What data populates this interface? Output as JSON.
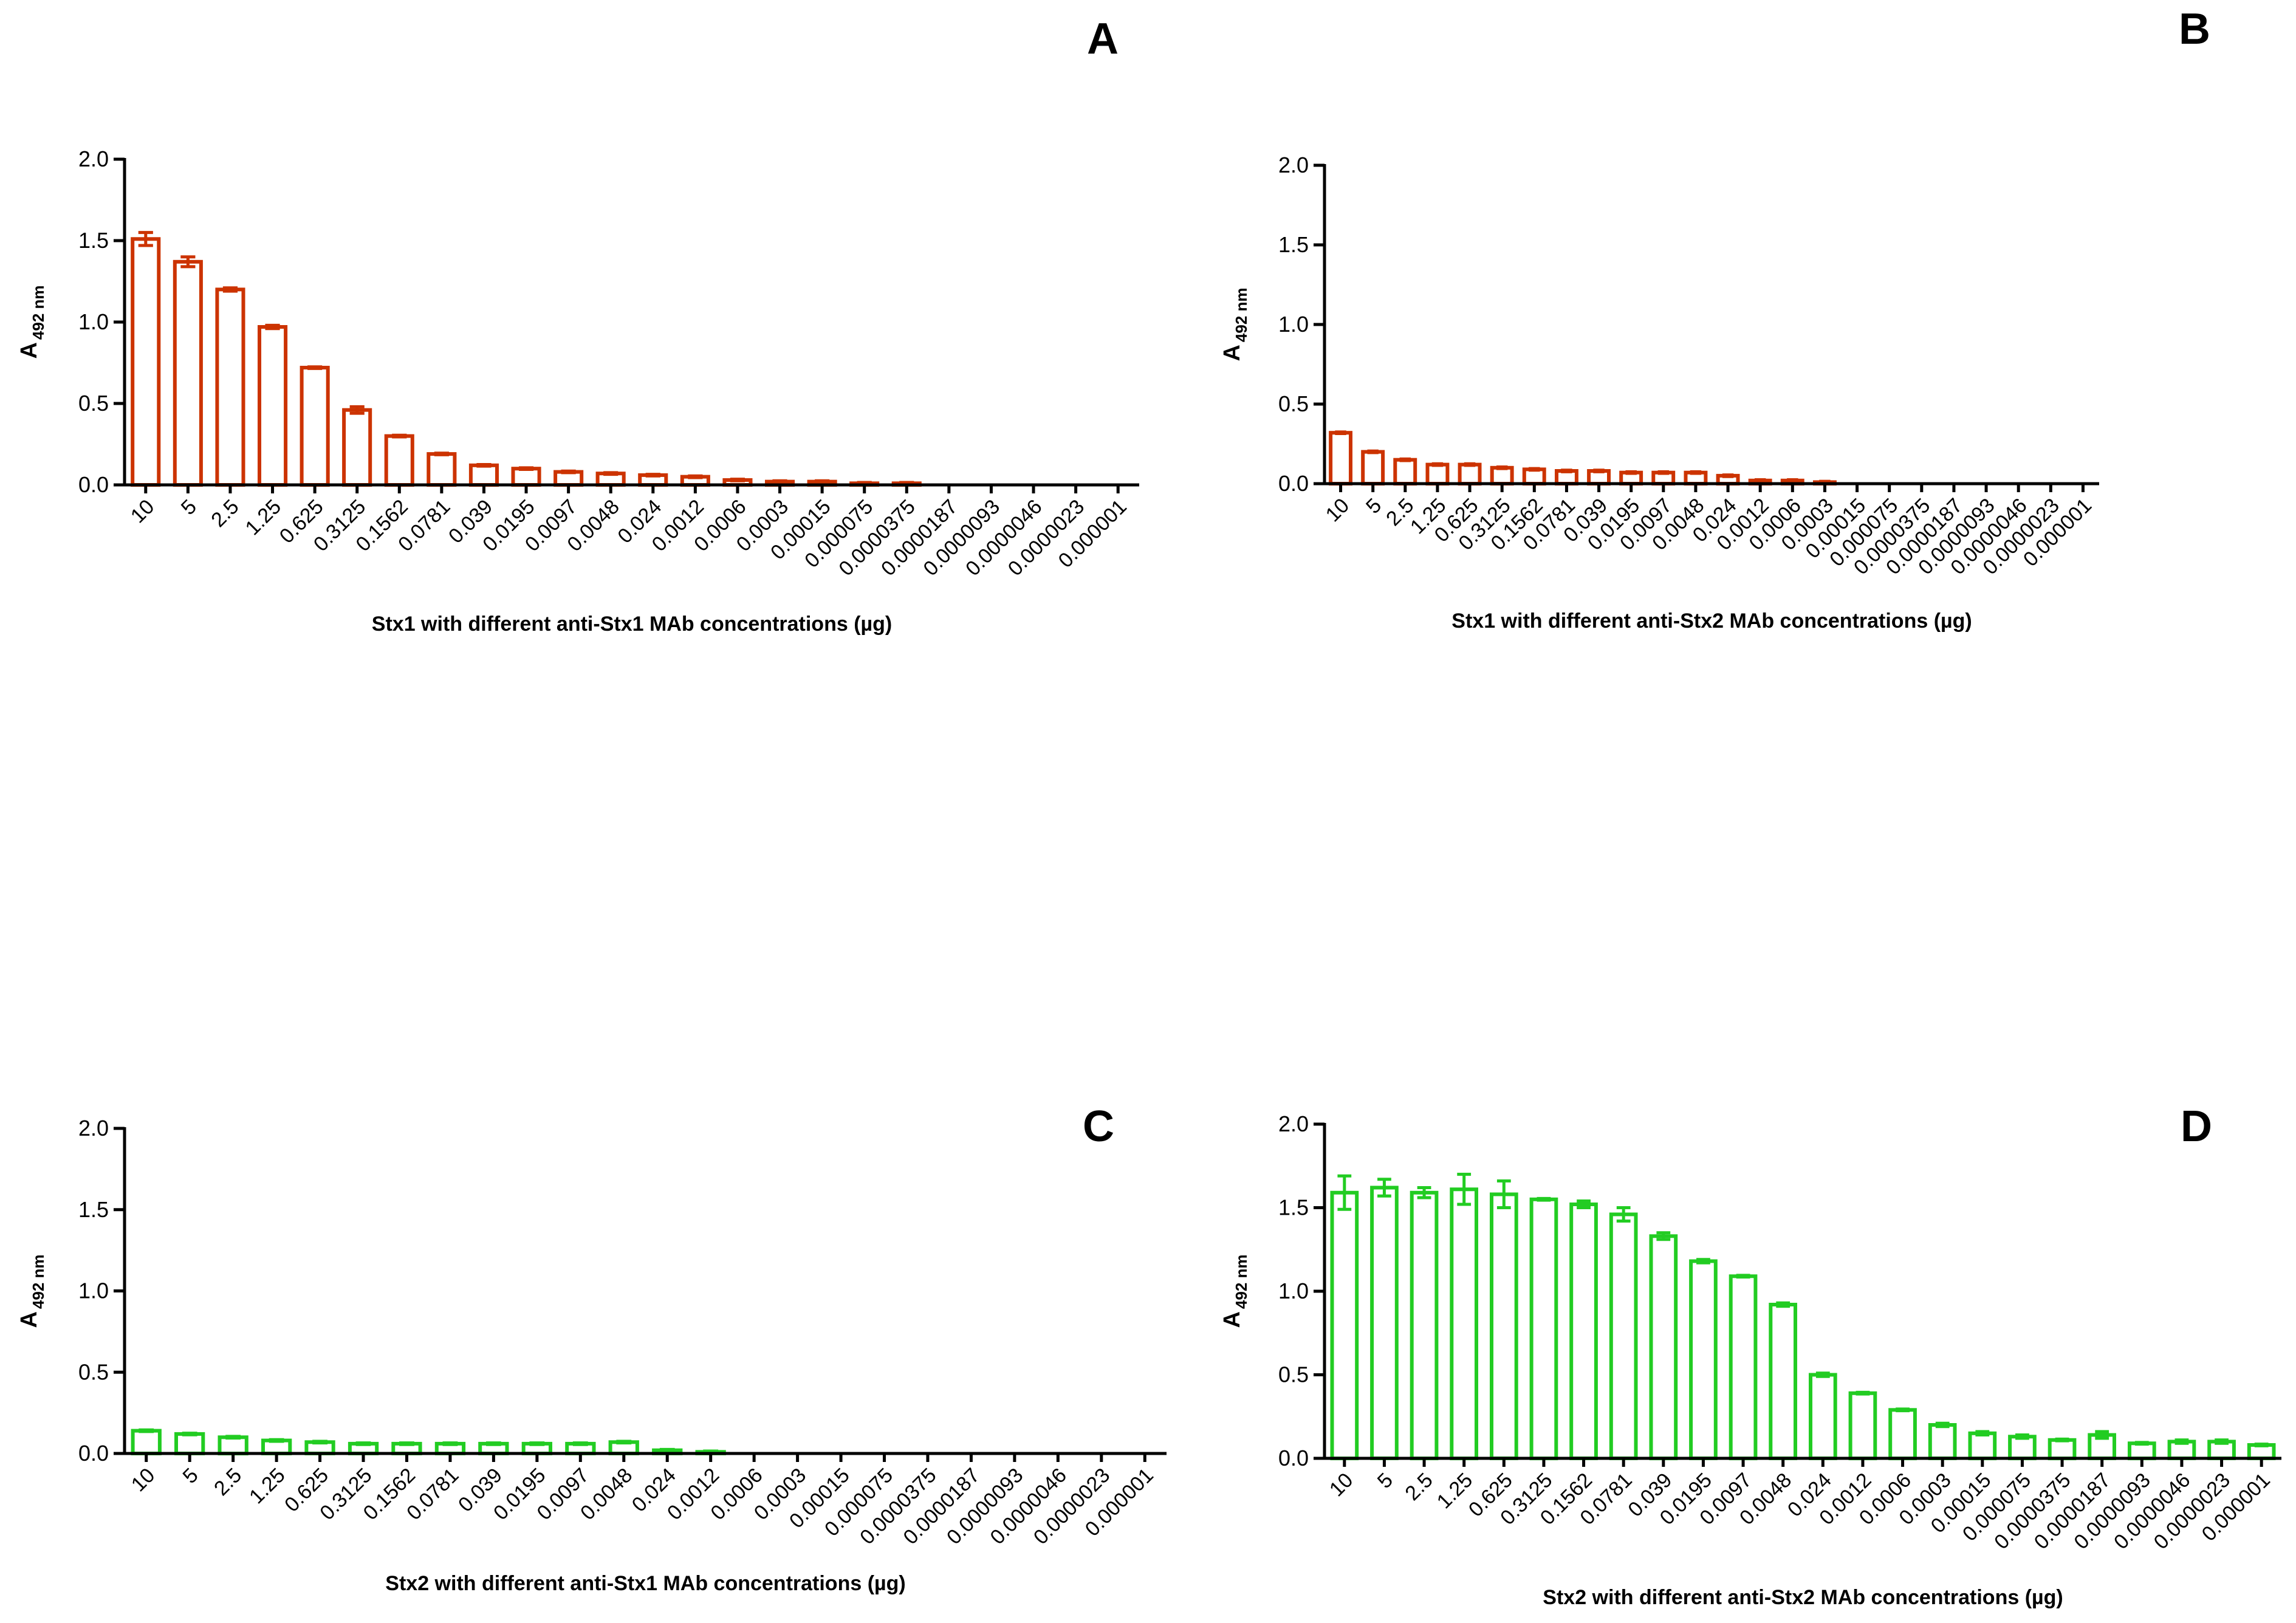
{
  "chart_data": [
    {
      "type": "bar",
      "panel": "A",
      "color": "#cc3300",
      "title": "A",
      "ylabel_main": "A",
      "ylabel_sub": "492 nm",
      "xlabel": "Stx1 with different anti-Stx1 MAb concentrations (µg)",
      "ylim": [
        0,
        2.0
      ],
      "yticks": [
        "0.0",
        "0.5",
        "1.0",
        "1.5",
        "2.0"
      ],
      "categories": [
        "10",
        "5",
        "2.5",
        "1.25",
        "0.625",
        "0.3125",
        "0.1562",
        "0.0781",
        "0.039",
        "0.0195",
        "0.0097",
        "0.0048",
        "0.024",
        "0.0012",
        "0.0006",
        "0.0003",
        "0.00015",
        "0.000075",
        "0.0000375",
        "0.0000187",
        "0.0000093",
        "0.0000046",
        "0.0000023",
        "0.000001"
      ],
      "values": [
        1.51,
        1.37,
        1.2,
        0.97,
        0.72,
        0.46,
        0.3,
        0.19,
        0.12,
        0.1,
        0.08,
        0.07,
        0.06,
        0.05,
        0.03,
        0.02,
        0.02,
        0.01,
        0.01,
        0,
        0,
        0,
        0,
        0
      ],
      "errors": [
        0.04,
        0.03,
        0.01,
        0.01,
        0.005,
        0.02,
        0.005,
        0.005,
        0.005,
        0.005,
        0.005,
        0.005,
        0.005,
        0.005,
        0.005,
        0.005,
        0.005,
        0.005,
        0.005,
        0,
        0,
        0,
        0,
        0
      ],
      "grid": false
    },
    {
      "type": "bar",
      "panel": "B",
      "color": "#cc3300",
      "title": "B",
      "ylabel_main": "A",
      "ylabel_sub": "492 nm",
      "xlabel": "Stx1 with different anti-Stx2 MAb concentrations (µg)",
      "ylim": [
        0,
        2.0
      ],
      "yticks": [
        "0.0",
        "0.5",
        "1.0",
        "1.5",
        "2.0"
      ],
      "categories": [
        "10",
        "5",
        "2.5",
        "1.25",
        "0.625",
        "0.3125",
        "0.1562",
        "0.0781",
        "0.039",
        "0.0195",
        "0.0097",
        "0.0048",
        "0.024",
        "0.0012",
        "0.0006",
        "0.0003",
        "0.00015",
        "0.000075",
        "0.0000375",
        "0.0000187",
        "0.0000093",
        "0.0000046",
        "0.0000023",
        "0.000001"
      ],
      "values": [
        0.32,
        0.2,
        0.15,
        0.12,
        0.12,
        0.1,
        0.09,
        0.08,
        0.08,
        0.07,
        0.07,
        0.07,
        0.05,
        0.02,
        0.02,
        0.01,
        0,
        0,
        0,
        0,
        0,
        0,
        0,
        0
      ],
      "errors": [
        0.005,
        0.005,
        0.005,
        0.005,
        0.005,
        0.005,
        0.005,
        0.005,
        0.005,
        0.005,
        0.005,
        0.005,
        0.005,
        0.005,
        0.005,
        0.005,
        0,
        0,
        0,
        0,
        0,
        0,
        0,
        0
      ],
      "grid": false
    },
    {
      "type": "bar",
      "panel": "C",
      "color": "#22cc22",
      "title": "C",
      "ylabel_main": "A",
      "ylabel_sub": "492 nm",
      "xlabel": "Stx2 with different anti-Stx1 MAb concentrations (µg)",
      "ylim": [
        0,
        2.0
      ],
      "yticks": [
        "0.0",
        "0.5",
        "1.0",
        "1.5",
        "2.0"
      ],
      "categories": [
        "10",
        "5",
        "2.5",
        "1.25",
        "0.625",
        "0.3125",
        "0.1562",
        "0.0781",
        "0.039",
        "0.0195",
        "0.0097",
        "0.0048",
        "0.024",
        "0.0012",
        "0.0006",
        "0.0003",
        "0.00015",
        "0.000075",
        "0.0000375",
        "0.0000187",
        "0.0000093",
        "0.0000046",
        "0.0000023",
        "0.000001"
      ],
      "values": [
        0.14,
        0.12,
        0.1,
        0.08,
        0.07,
        0.06,
        0.06,
        0.06,
        0.06,
        0.06,
        0.06,
        0.07,
        0.02,
        0.01,
        0,
        0,
        0,
        0,
        0,
        0,
        0,
        0,
        0,
        0
      ],
      "errors": [
        0.005,
        0.005,
        0.005,
        0.005,
        0.005,
        0.005,
        0.005,
        0.005,
        0.005,
        0.005,
        0.005,
        0.005,
        0.005,
        0.005,
        0,
        0,
        0,
        0,
        0,
        0,
        0,
        0,
        0,
        0
      ],
      "grid": false
    },
    {
      "type": "bar",
      "panel": "D",
      "color": "#22cc22",
      "title": "D",
      "ylabel_main": "A",
      "ylabel_sub": "492 nm",
      "xlabel": "Stx2 with different anti-Stx2 MAb concentrations (µg)",
      "ylim": [
        0,
        2.0
      ],
      "yticks": [
        "0.0",
        "0.5",
        "1.0",
        "1.5",
        "2.0"
      ],
      "categories": [
        "10",
        "5",
        "2.5",
        "1.25",
        "0.625",
        "0.3125",
        "0.1562",
        "0.0781",
        "0.039",
        "0.0195",
        "0.0097",
        "0.0048",
        "0.024",
        "0.0012",
        "0.0006",
        "0.0003",
        "0.00015",
        "0.000075",
        "0.0000375",
        "0.0000187",
        "0.0000093",
        "0.0000046",
        "0.0000023",
        "0.000001"
      ],
      "values": [
        1.59,
        1.62,
        1.59,
        1.61,
        1.58,
        1.55,
        1.52,
        1.46,
        1.33,
        1.18,
        1.09,
        0.92,
        0.5,
        0.39,
        0.29,
        0.2,
        0.15,
        0.13,
        0.11,
        0.14,
        0.09,
        0.1,
        0.1,
        0.08
      ],
      "errors": [
        0.1,
        0.05,
        0.03,
        0.09,
        0.08,
        0.005,
        0.02,
        0.04,
        0.02,
        0.01,
        0.005,
        0.01,
        0.01,
        0.005,
        0.005,
        0.01,
        0.01,
        0.01,
        0.005,
        0.02,
        0.005,
        0.01,
        0.01,
        0.005
      ],
      "grid": false
    }
  ]
}
